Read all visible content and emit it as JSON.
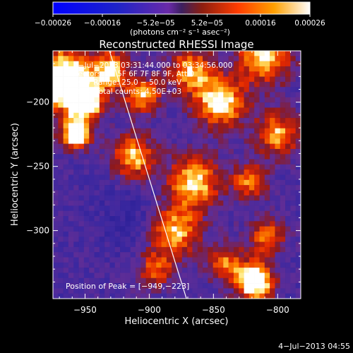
{
  "chart_data": {
    "type": "heatmap",
    "title": "Reconstructed RHESSI Image",
    "xlabel": "Heliocentric X (arcsec)",
    "ylabel": "Heliocentric Y (arcsec)",
    "xlim": [
      -975,
      -782
    ],
    "ylim": [
      -353,
      -160
    ],
    "x_ticks": [
      -950,
      -900,
      -850,
      -800
    ],
    "y_ticks": [
      -200,
      -250,
      -300
    ],
    "x_tick_labels": [
      "−950",
      "−900",
      "−850",
      "−800"
    ],
    "y_tick_labels": [
      "−200",
      "−250",
      "−300"
    ],
    "colorbar": {
      "range": [
        -0.00026,
        0.00026
      ],
      "ticks": [
        -0.00026,
        -0.00016,
        -5.2e-05,
        5.2e-05,
        0.00016,
        0.00026
      ],
      "tick_labels": [
        "−0.00026",
        "−0.00016",
        "−5.2e−05",
        "5.2e−05",
        "0.00016",
        "0.00026"
      ],
      "unit_label": "(photons cm⁻² s⁻¹ asec⁻²)"
    },
    "info_lines": [
      "4−Jul−2013 03:31:44.000 to 03:34:56.000",
      "Detectors: 3F 5F 6F 7F 8F 9F, Att 0",
      "Energy Range: 25.0 − 50.0 keV",
      "Clean    Total counts: 4.50E+03"
    ],
    "peak_label": "Position of Peak = [−949,−223]",
    "peak_position": [
      -949,
      -223
    ],
    "limb_line": {
      "x_top": -931,
      "y_top": -160,
      "x_bottom": -871,
      "y_bottom": -353
    },
    "source_blobs": [
      {
        "x": -968,
        "y": -182,
        "r": 16,
        "amp": 1.0
      },
      {
        "x": -950,
        "y": -200,
        "r": 10,
        "amp": 0.85
      },
      {
        "x": -957,
        "y": -225,
        "r": 8,
        "amp": 0.9
      },
      {
        "x": -930,
        "y": -175,
        "r": 10,
        "amp": 0.7
      },
      {
        "x": -912,
        "y": -243,
        "r": 12,
        "amp": 0.65
      },
      {
        "x": -905,
        "y": -195,
        "r": 10,
        "amp": 0.6
      },
      {
        "x": -868,
        "y": -175,
        "r": 12,
        "amp": 0.6
      },
      {
        "x": -845,
        "y": -200,
        "r": 14,
        "amp": 0.75
      },
      {
        "x": -810,
        "y": -165,
        "r": 14,
        "amp": 0.7
      },
      {
        "x": -800,
        "y": -225,
        "r": 12,
        "amp": 0.6
      },
      {
        "x": -865,
        "y": -262,
        "r": 14,
        "amp": 0.7
      },
      {
        "x": -822,
        "y": -262,
        "r": 10,
        "amp": 0.5
      },
      {
        "x": -880,
        "y": -300,
        "r": 14,
        "amp": 0.65
      },
      {
        "x": -840,
        "y": -325,
        "r": 10,
        "amp": 0.5
      },
      {
        "x": -818,
        "y": -340,
        "r": 10,
        "amp": 1.0
      },
      {
        "x": -808,
        "y": -305,
        "r": 10,
        "amp": 0.5
      },
      {
        "x": -895,
        "y": -330,
        "r": 10,
        "amp": 0.45
      }
    ]
  },
  "footer_timestamp": "4−Jul−2013 04:55"
}
